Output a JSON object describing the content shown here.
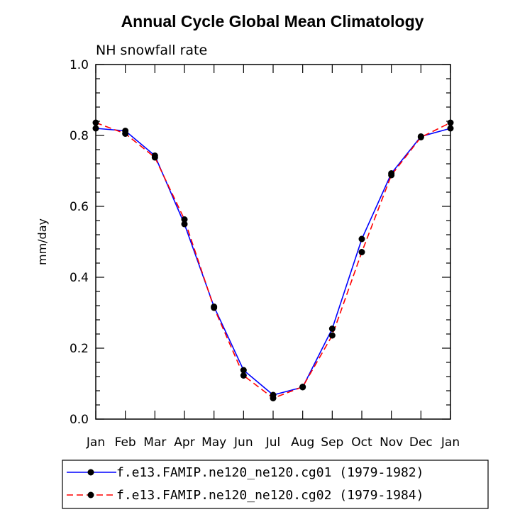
{
  "chart_data": {
    "type": "line",
    "title": "Annual Cycle Global Mean Climatology",
    "subtitle": "NH snowfall rate",
    "xlabel": "",
    "ylabel": "mm/day",
    "categories": [
      "Jan",
      "Feb",
      "Mar",
      "Apr",
      "May",
      "Jun",
      "Jul",
      "Aug",
      "Sep",
      "Oct",
      "Nov",
      "Dec",
      "Jan"
    ],
    "ylim": [
      0.0,
      1.0
    ],
    "yticks": [
      "0.0",
      "0.2",
      "0.4",
      "0.6",
      "0.8",
      "1.0"
    ],
    "grid": false,
    "legend_position": "bottom",
    "series": [
      {
        "name": "f.e13.FAMIP.ne120_ne120.cg01 (1979-1982)",
        "color": "#0000ff",
        "dash": "solid",
        "values": [
          0.82,
          0.813,
          0.743,
          0.55,
          0.317,
          0.138,
          0.068,
          0.09,
          0.255,
          0.508,
          0.693,
          0.797,
          0.82
        ]
      },
      {
        "name": "f.e13.FAMIP.ne120_ne120.cg02 (1979-1984)",
        "color": "#ff0000",
        "dash": "dashed",
        "values": [
          0.836,
          0.805,
          0.738,
          0.563,
          0.314,
          0.123,
          0.059,
          0.091,
          0.236,
          0.471,
          0.688,
          0.795,
          0.836
        ]
      }
    ]
  }
}
